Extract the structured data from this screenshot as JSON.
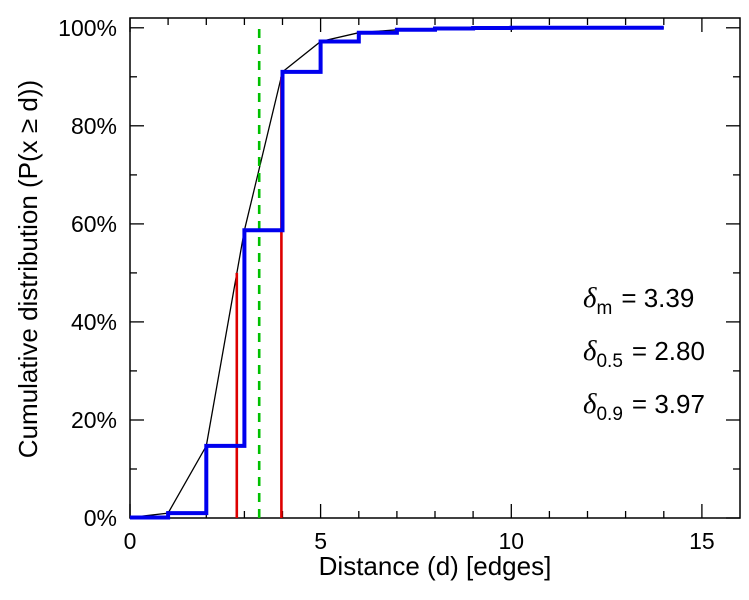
{
  "chart_data": {
    "type": "line",
    "title": "",
    "xlabel": "Distance (d) [edges]",
    "ylabel": "Cumulative distribution (P(x ≥ d))",
    "xlim": [
      0,
      16
    ],
    "ylim": [
      0,
      102
    ],
    "grid": false,
    "legend": "none",
    "x_major_ticks": [
      0,
      5,
      10,
      15
    ],
    "x_minor_ticks": [
      1,
      2,
      3,
      4,
      6,
      7,
      8,
      9,
      11,
      12,
      13,
      14
    ],
    "y_major_ticks": [
      0,
      20,
      40,
      60,
      80,
      100
    ],
    "y_major_tick_labels": [
      "0%",
      "20%",
      "40%",
      "60%",
      "80%",
      "100%"
    ],
    "y_minor_ticks": [
      10,
      30,
      50,
      70,
      90
    ],
    "distances": [
      0,
      1,
      2,
      3,
      4,
      5,
      6,
      7,
      8,
      9,
      10,
      11,
      12,
      13,
      14
    ],
    "cumulative_percent": [
      0.1,
      1.0,
      14.7,
      58.7,
      91.0,
      97.2,
      99.0,
      99.6,
      99.85,
      99.95,
      100,
      100,
      100,
      100,
      100
    ],
    "series": [
      {
        "name": "empirical-cdf-steps",
        "type": "step",
        "color": "#0000ee",
        "width": 4
      },
      {
        "name": "interpolated-cdf",
        "type": "linear",
        "color": "#000000",
        "width": 1.3
      }
    ],
    "vlines": [
      {
        "name": "mean-distance",
        "x": 3.39,
        "y_from": 0,
        "y_to": 101,
        "color": "#00c000",
        "dash": "9,7",
        "width": 2.6
      },
      {
        "name": "median-distance",
        "x": 2.8,
        "y_from": 0,
        "y_to": 50,
        "color": "#dd0000",
        "dash": "",
        "width": 2.6
      },
      {
        "name": "p90-distance",
        "x": 3.97,
        "y_from": 0,
        "y_to": 90,
        "color": "#dd0000",
        "dash": "",
        "width": 2.6
      }
    ],
    "annotations": [
      {
        "symbol": "δ",
        "subscript": "m",
        "text": "= 3.39"
      },
      {
        "symbol": "δ",
        "subscript": "0.5",
        "text": "= 2.80"
      },
      {
        "symbol": "δ",
        "subscript": "0.9",
        "text": "= 3.97"
      }
    ]
  }
}
